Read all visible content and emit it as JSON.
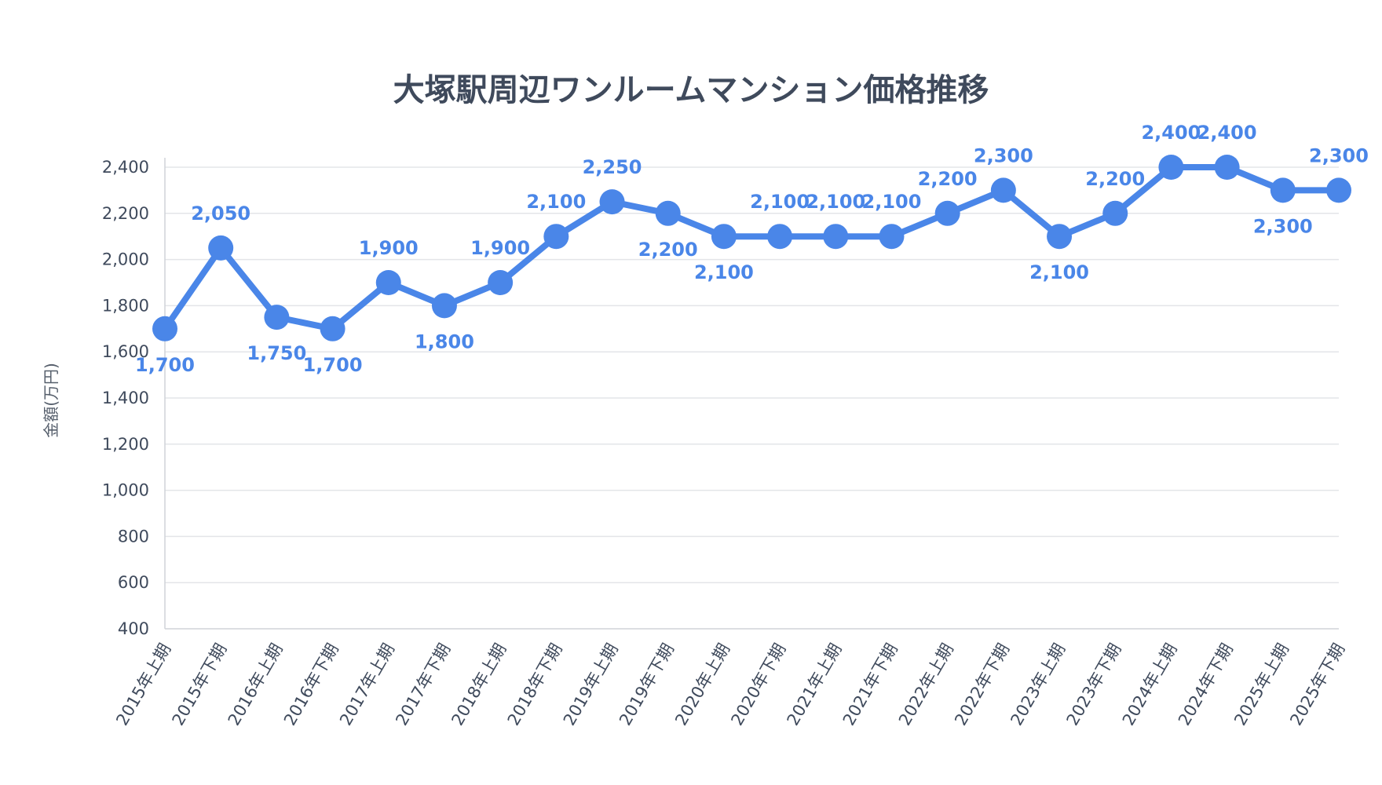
{
  "chart_data": {
    "type": "line",
    "title": "大塚駅周辺ワンルームマンション価格推移",
    "xlabel": "",
    "ylabel": "金額(万円)",
    "ylim": [
      400,
      2400
    ],
    "yticks": [
      "400",
      "600",
      "800",
      "1,000",
      "1,200",
      "1,400",
      "1,600",
      "1,800",
      "2,000",
      "2,200",
      "2,400"
    ],
    "grid": true,
    "line_color": "#4a86e8",
    "categories": [
      "2015年上期",
      "2015年下期",
      "2016年上期",
      "2016年下期",
      "2017年上期",
      "2017年下期",
      "2018年上期",
      "2018年下期",
      "2019年上期",
      "2019年下期",
      "2020年上期",
      "2020年下期",
      "2021年上期",
      "2021年下期",
      "2022年上期",
      "2022年下期",
      "2023年上期",
      "2023年下期",
      "2024年上期",
      "2024年下期",
      "2025年上期",
      "2025年下期"
    ],
    "values": [
      1700,
      2050,
      1750,
      1700,
      1900,
      1800,
      1900,
      2100,
      2250,
      2200,
      2100,
      2100,
      2100,
      2100,
      2200,
      2300,
      2100,
      2200,
      2400,
      2400,
      2300,
      2300
    ],
    "data_labels": [
      "1,700",
      "2,050",
      "1,750",
      "1,700",
      "1,900",
      "1,800",
      "1,900",
      "2,100",
      "2,250",
      "2,200",
      "2,100",
      "2,100",
      "2,100",
      "2,100",
      "2,200",
      "2,300",
      "2,100",
      "2,200",
      "2,400",
      "2,400",
      "2,300",
      "2,300"
    ]
  }
}
